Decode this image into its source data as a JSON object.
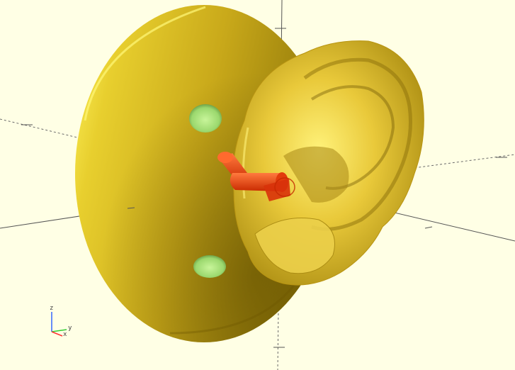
{
  "viewport": {
    "background_color": "#ffffe5",
    "projection": "perspective",
    "show_axes": true,
    "show_scale_markers": true
  },
  "model": {
    "base_disc_color": "#e0c22a",
    "ear_color": "#e6c52e",
    "peg_color": "#e9451a",
    "hole_color": "#a8e07a"
  },
  "axes_gizmo": {
    "x_label": "x",
    "y_label": "y",
    "z_label": "z",
    "x_color": "#ff3333",
    "y_color": "#33cc33",
    "z_color": "#3366ff"
  }
}
